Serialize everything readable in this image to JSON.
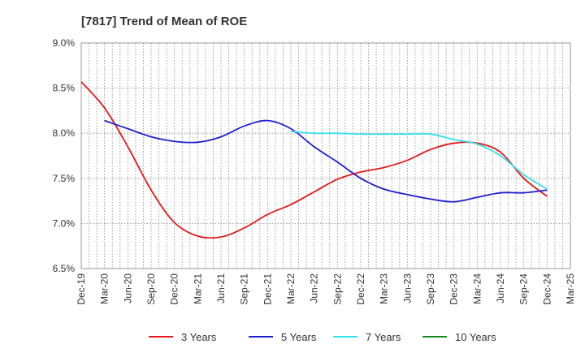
{
  "chart_data": {
    "type": "line",
    "title": "[7817]  Trend of Mean of ROE",
    "xlabel": "",
    "ylabel": "",
    "ylim": [
      6.5,
      9.0
    ],
    "yticks": [
      "9.0%",
      "8.5%",
      "8.0%",
      "7.5%",
      "7.0%",
      "6.5%"
    ],
    "ytick_values": [
      9.0,
      8.5,
      8.0,
      7.5,
      7.0,
      6.5
    ],
    "categories": [
      "Dec-19",
      "Mar-20",
      "Jun-20",
      "Sep-20",
      "Dec-20",
      "Mar-21",
      "Jun-21",
      "Sep-21",
      "Dec-21",
      "Mar-22",
      "Jun-22",
      "Sep-22",
      "Dec-22",
      "Mar-23",
      "Jun-23",
      "Sep-23",
      "Dec-23",
      "Mar-24",
      "Jun-24",
      "Sep-24",
      "Dec-24",
      "Mar-25"
    ],
    "grid": true,
    "legend_position": "bottom",
    "series": [
      {
        "name": "3 Years",
        "color": "#e31a1c",
        "values": [
          8.57,
          8.28,
          7.85,
          7.37,
          7.01,
          6.86,
          6.85,
          6.95,
          7.1,
          7.21,
          7.35,
          7.49,
          7.57,
          7.62,
          7.7,
          7.82,
          7.89,
          7.89,
          7.79,
          7.5,
          7.3,
          null
        ]
      },
      {
        "name": "5 Years",
        "color": "#1f1fd1",
        "values": [
          null,
          8.14,
          8.05,
          7.96,
          7.91,
          7.9,
          7.96,
          8.08,
          8.14,
          8.05,
          7.85,
          7.68,
          7.5,
          7.38,
          7.32,
          7.27,
          7.24,
          7.29,
          7.34,
          7.34,
          7.37,
          null
        ]
      },
      {
        "name": "7 Years",
        "color": "#33e0f0",
        "values": [
          null,
          null,
          null,
          null,
          null,
          null,
          null,
          null,
          null,
          8.02,
          8.0,
          8.0,
          7.99,
          7.99,
          7.99,
          7.99,
          7.93,
          7.88,
          7.75,
          7.54,
          7.38,
          null
        ]
      },
      {
        "name": "10 Years",
        "color": "#1a8a1a",
        "values": [
          null,
          null,
          null,
          null,
          null,
          null,
          null,
          null,
          null,
          null,
          null,
          null,
          null,
          null,
          null,
          null,
          null,
          null,
          null,
          null,
          null,
          null
        ]
      }
    ]
  }
}
